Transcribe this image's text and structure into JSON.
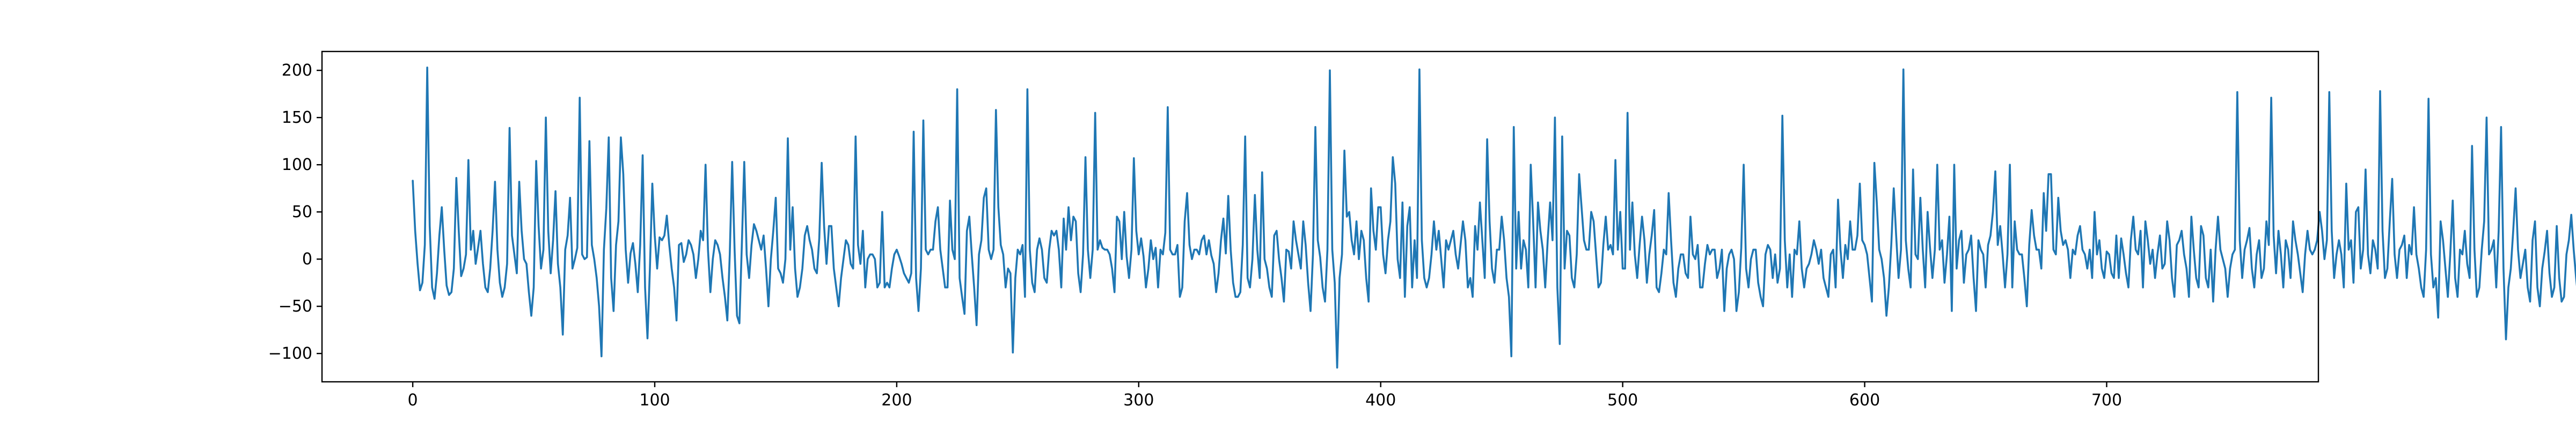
{
  "chart_data": {
    "type": "line",
    "title": "",
    "xlabel": "",
    "ylabel": "",
    "xlim": [
      -37.5,
      787.5
    ],
    "ylim": [
      -130,
      220
    ],
    "xticks": [
      0,
      100,
      200,
      300,
      400,
      500,
      600,
      700
    ],
    "xtick_labels": [
      "0",
      "100",
      "200",
      "300",
      "400",
      "500",
      "600",
      "700"
    ],
    "yticks": [
      -100,
      -50,
      0,
      50,
      100,
      150,
      200
    ],
    "ytick_labels": [
      "−100",
      "−50",
      "0",
      "50",
      "100",
      "150",
      "200"
    ],
    "grid": false,
    "legend": "none",
    "series": [
      {
        "color": "#1f77b4",
        "x_start": 0,
        "x_step": 1,
        "values": [
          83,
          30,
          -5,
          -33,
          -25,
          15,
          203,
          35,
          -30,
          -42,
          -15,
          25,
          55,
          10,
          -28,
          -38,
          -35,
          -10,
          86,
          30,
          -18,
          -10,
          5,
          105,
          10,
          30,
          -5,
          12,
          30,
          -5,
          -30,
          -35,
          -10,
          30,
          82,
          10,
          -25,
          -40,
          -30,
          -5,
          139,
          25,
          5,
          -15,
          82,
          30,
          0,
          -5,
          -35,
          -60,
          -30,
          104,
          35,
          -10,
          10,
          150,
          30,
          -15,
          20,
          72,
          -5,
          -30,
          -80,
          10,
          25,
          65,
          -10,
          0,
          12,
          171,
          5,
          0,
          2,
          125,
          15,
          0,
          -20,
          -50,
          -103,
          10,
          54,
          129,
          -20,
          -55,
          15,
          40,
          129,
          90,
          10,
          -25,
          6,
          17,
          -5,
          -35,
          15,
          110,
          -30,
          -84,
          -10,
          80,
          25,
          -10,
          23,
          20,
          25,
          46,
          15,
          -10,
          -30,
          -65,
          15,
          17,
          -3,
          5,
          20,
          15,
          5,
          -20,
          0,
          30,
          20,
          100,
          10,
          -35,
          0,
          20,
          15,
          5,
          -20,
          -40,
          -65,
          5,
          103,
          10,
          -60,
          -68,
          15,
          103,
          5,
          -20,
          15,
          37,
          30,
          20,
          10,
          25,
          -10,
          -50,
          0,
          30,
          65,
          -10,
          -15,
          -25,
          0,
          128,
          10,
          55,
          -10,
          -40,
          -30,
          -10,
          25,
          35,
          20,
          10,
          -10,
          -15,
          22,
          102,
          35,
          -5,
          35,
          35,
          -10,
          -30,
          -50,
          -20,
          0,
          20,
          15,
          -5,
          -10,
          130,
          15,
          -5,
          30,
          -30,
          0,
          5,
          5,
          0,
          -30,
          -25,
          50,
          -30,
          -25,
          -30,
          -10,
          5,
          10,
          3,
          -5,
          -15,
          -20,
          -25,
          -15,
          135,
          -20,
          -55,
          -10,
          147,
          10,
          5,
          10,
          10,
          40,
          55,
          10,
          -10,
          -30,
          -30,
          62,
          10,
          0,
          180,
          -20,
          -40,
          -58,
          30,
          45,
          5,
          -30,
          -70,
          5,
          20,
          65,
          75,
          10,
          0,
          10,
          158,
          55,
          15,
          5,
          -30,
          -10,
          -15,
          -99,
          -20,
          10,
          5,
          15,
          -40,
          180,
          10,
          -25,
          -35,
          10,
          22,
          10,
          -20,
          -25,
          10,
          30,
          25,
          30,
          10,
          -30,
          43,
          10,
          55,
          20,
          45,
          40,
          -15,
          -35,
          5,
          108,
          10,
          -20,
          10,
          155,
          10,
          20,
          12,
          10,
          10,
          5,
          -10,
          -35,
          45,
          40,
          0,
          50,
          3,
          -20,
          10,
          107,
          30,
          5,
          22,
          3,
          -30,
          -10,
          20,
          0,
          12,
          -30,
          10,
          5,
          28,
          161,
          10,
          5,
          5,
          15,
          -40,
          -30,
          40,
          70,
          15,
          0,
          10,
          10,
          5,
          20,
          25,
          5,
          20,
          4,
          -5,
          -35,
          -15,
          20,
          43,
          6,
          67,
          10,
          -25,
          -40,
          -40,
          -35,
          15,
          130,
          -20,
          -30,
          0,
          68,
          10,
          -20,
          92,
          0,
          -10,
          -30,
          -40,
          25,
          30,
          0,
          -20,
          -45,
          10,
          8,
          -10,
          40,
          20,
          5,
          -10,
          40,
          15,
          -25,
          -55,
          5,
          140,
          20,
          2,
          -30,
          -45,
          10,
          200,
          10,
          -25,
          -115,
          -20,
          5,
          115,
          45,
          50,
          20,
          5,
          40,
          0,
          30,
          20,
          -20,
          -45,
          75,
          30,
          10,
          55,
          55,
          5,
          -15,
          20,
          40,
          108,
          80,
          0,
          -20,
          60,
          -40,
          35,
          55,
          -30,
          20,
          -20,
          201,
          20,
          -20,
          -30,
          -20,
          5,
          40,
          10,
          30,
          0,
          -30,
          20,
          10,
          20,
          30,
          5,
          -10,
          15,
          40,
          20,
          -30,
          -20,
          -40,
          35,
          10,
          60,
          20,
          -20,
          127,
          40,
          -10,
          -25,
          10,
          10,
          45,
          20,
          -20,
          -40,
          -103,
          140,
          -10,
          50,
          -10,
          20,
          10,
          -30,
          100,
          40,
          -30,
          60,
          30,
          10,
          -30,
          20,
          60,
          20,
          150,
          -30,
          -90,
          130,
          -10,
          30,
          25,
          -20,
          -30,
          5,
          90,
          55,
          20,
          10,
          10,
          50,
          40,
          5,
          -30,
          -25,
          15,
          45,
          10,
          15,
          5,
          105,
          10,
          50,
          -10,
          -10,
          155,
          10,
          60,
          5,
          -20,
          15,
          45,
          20,
          -25,
          5,
          25,
          52,
          -30,
          -35,
          -15,
          10,
          5,
          70,
          20,
          -25,
          -40,
          -10,
          5,
          5,
          -15,
          -20,
          45,
          5,
          0,
          15,
          -30,
          -30,
          -5,
          15,
          5,
          10,
          10,
          -20,
          -10,
          10,
          -55,
          -10,
          5,
          10,
          0,
          -55,
          -35,
          12,
          100,
          -10,
          -30,
          0,
          10,
          10,
          -25,
          -40,
          -50,
          5,
          15,
          10,
          -20,
          5,
          -25,
          -10,
          152,
          20,
          -30,
          5,
          -40,
          10,
          5,
          40,
          -10,
          -30,
          -10,
          -5,
          5,
          20,
          10,
          -5,
          10,
          -20,
          -30,
          -40,
          5,
          10,
          -30,
          63,
          10,
          -20,
          15,
          0,
          40,
          10,
          10,
          25,
          80,
          20,
          15,
          5,
          -20,
          -45,
          102,
          60,
          10,
          0,
          -20,
          -60,
          -30,
          15,
          75,
          25,
          -20,
          10,
          201,
          20,
          -10,
          -30,
          95,
          5,
          0,
          65,
          10,
          -30,
          50,
          12,
          -20,
          10,
          100,
          10,
          20,
          -25,
          5,
          45,
          -55,
          100,
          -10,
          20,
          30,
          -25,
          5,
          10,
          25,
          -20,
          -55,
          20,
          10,
          5,
          -30,
          15,
          25,
          50,
          93,
          15,
          35,
          5,
          -30,
          5,
          100,
          -30,
          40,
          10,
          5,
          5,
          -20,
          -50,
          15,
          52,
          25,
          10,
          10,
          -10,
          70,
          30,
          90,
          90,
          10,
          5,
          65,
          30,
          15,
          20,
          10,
          -20,
          10,
          5,
          25,
          35,
          10,
          5,
          -10,
          10,
          -20,
          50,
          5,
          20,
          -10,
          -20,
          8,
          5,
          -15,
          -20,
          25,
          -20,
          22,
          5,
          -15,
          -30,
          20,
          45,
          10,
          5,
          30,
          -30,
          40,
          20,
          -5,
          10,
          -20,
          5,
          25,
          -10,
          -5,
          40,
          20,
          -20,
          -40,
          15,
          20,
          30,
          5,
          -10,
          -40,
          45,
          10,
          -20,
          -30,
          35,
          25,
          -20,
          -30,
          10,
          -45,
          10,
          45,
          10,
          0,
          -10,
          -40,
          -10,
          5,
          10,
          177,
          20,
          -20,
          10,
          20,
          33,
          -10,
          -30,
          5,
          20,
          -20,
          -10,
          40,
          15,
          171,
          25,
          -15,
          30,
          5,
          -30,
          20,
          10,
          -20,
          40,
          20,
          5,
          -15,
          -35,
          5,
          30,
          10,
          5,
          10,
          20,
          50,
          30,
          0,
          20,
          177,
          30,
          -20,
          5,
          20,
          5,
          -30,
          80,
          10,
          20,
          -25,
          50,
          55,
          -10,
          10,
          95,
          5,
          -15,
          20,
          10,
          -10,
          178,
          30,
          -20,
          -10,
          40,
          85,
          5,
          -20,
          10,
          15,
          25,
          -20,
          15,
          5,
          55,
          5,
          -10,
          -30,
          -40,
          10,
          170,
          5,
          -30,
          -20,
          -62,
          40,
          20,
          -10,
          -40,
          5,
          62,
          -20,
          -40,
          10,
          5,
          30,
          -5,
          -20,
          120,
          10,
          -40,
          -30,
          10,
          40,
          150,
          5,
          10,
          20,
          -30,
          30,
          140,
          -10,
          -85,
          -30,
          -10,
          30,
          75,
          10,
          -20,
          -5,
          10,
          -30,
          -45,
          20,
          40,
          -30,
          -50,
          -10,
          8,
          30,
          -15,
          -40,
          -30,
          35,
          -20,
          -45,
          -40,
          5,
          20,
          47,
          10,
          -20,
          -45,
          -40,
          -20,
          -10
        ]
      }
    ]
  }
}
